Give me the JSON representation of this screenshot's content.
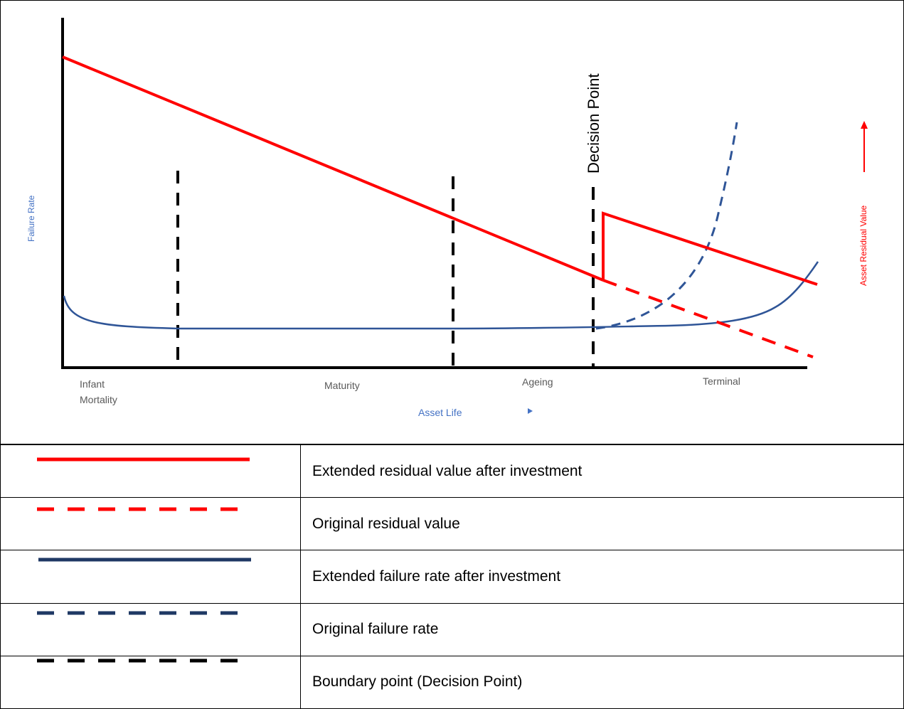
{
  "diagram": {
    "y_axis_label": "Failure Rate",
    "secondary_axis_label": "Asset Residual Value",
    "x_axis_label": "Asset Life",
    "decision_point_label": "Decision Point",
    "phases": [
      "Infant\nMortality",
      "Maturity",
      "Ageing",
      "Terminal"
    ],
    "colors": {
      "residual_value": "#ff0000",
      "failure_rate": "#2f5597",
      "boundary": "#000000",
      "y_axis_label": "#4472c4"
    }
  },
  "legend": [
    {
      "label": "Extended residual value after investment",
      "line_style": "solid",
      "color": "#ff0000"
    },
    {
      "label": "Original residual value",
      "line_style": "dashed",
      "color": "#ff0000"
    },
    {
      "label": "Extended failure rate after investment",
      "line_style": "solid",
      "color": "#1f3864"
    },
    {
      "label": "Original failure rate",
      "line_style": "dashed",
      "color": "#1f3864"
    },
    {
      "label": "Boundary point (Decision Point)",
      "line_style": "dashed",
      "color": "#000000"
    }
  ]
}
